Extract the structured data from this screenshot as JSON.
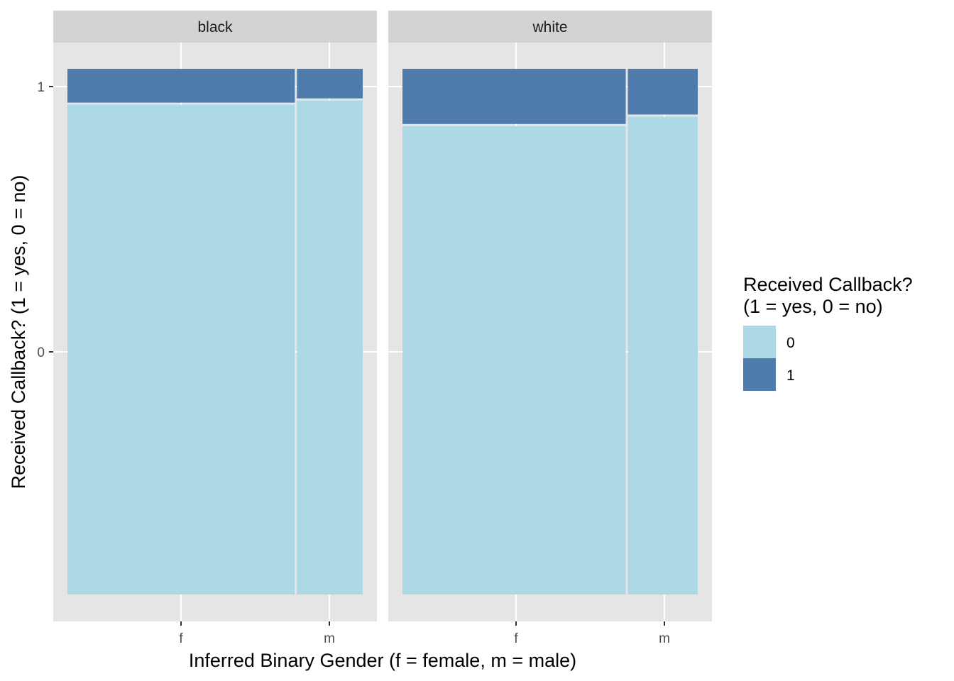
{
  "chart_data": {
    "type": "mosaic",
    "facets": [
      {
        "label": "black",
        "bars": [
          {
            "x": "f",
            "width_share": 0.7735,
            "segments": [
              {
                "fill": "0",
                "share": 0.9337
              },
              {
                "fill": "1",
                "share": 0.0663
              }
            ]
          },
          {
            "x": "m",
            "width_share": 0.2265,
            "segments": [
              {
                "fill": "0",
                "share": 0.9417
              },
              {
                "fill": "1",
                "share": 0.0583
              }
            ]
          }
        ]
      },
      {
        "label": "white",
        "bars": [
          {
            "x": "f",
            "width_share": 0.7597,
            "segments": [
              {
                "fill": "0",
                "share": 0.893
              },
              {
                "fill": "1",
                "share": 0.107
              }
            ]
          },
          {
            "x": "m",
            "width_share": 0.2403,
            "segments": [
              {
                "fill": "0",
                "share": 0.911
              },
              {
                "fill": "1",
                "share": 0.089
              }
            ]
          }
        ]
      }
    ],
    "x_ticks": [
      "f",
      "m"
    ],
    "y_ticks": [
      "1",
      "0"
    ],
    "xlabel": "Inferred Binary Gender (f = female, m = male)",
    "ylabel": "Received Callback? (1 = yes, 0 = no)",
    "legend": {
      "title_lines": [
        "Received Callback?",
        "(1 = yes, 0 = no)"
      ],
      "entries": [
        {
          "label": "0",
          "color": "#add8e6"
        },
        {
          "label": "1",
          "color": "#4f7cad"
        }
      ],
      "placement": "right"
    },
    "panel_background": "#e5e5e5",
    "strip_background": "#d3d3d3",
    "grid": true
  }
}
